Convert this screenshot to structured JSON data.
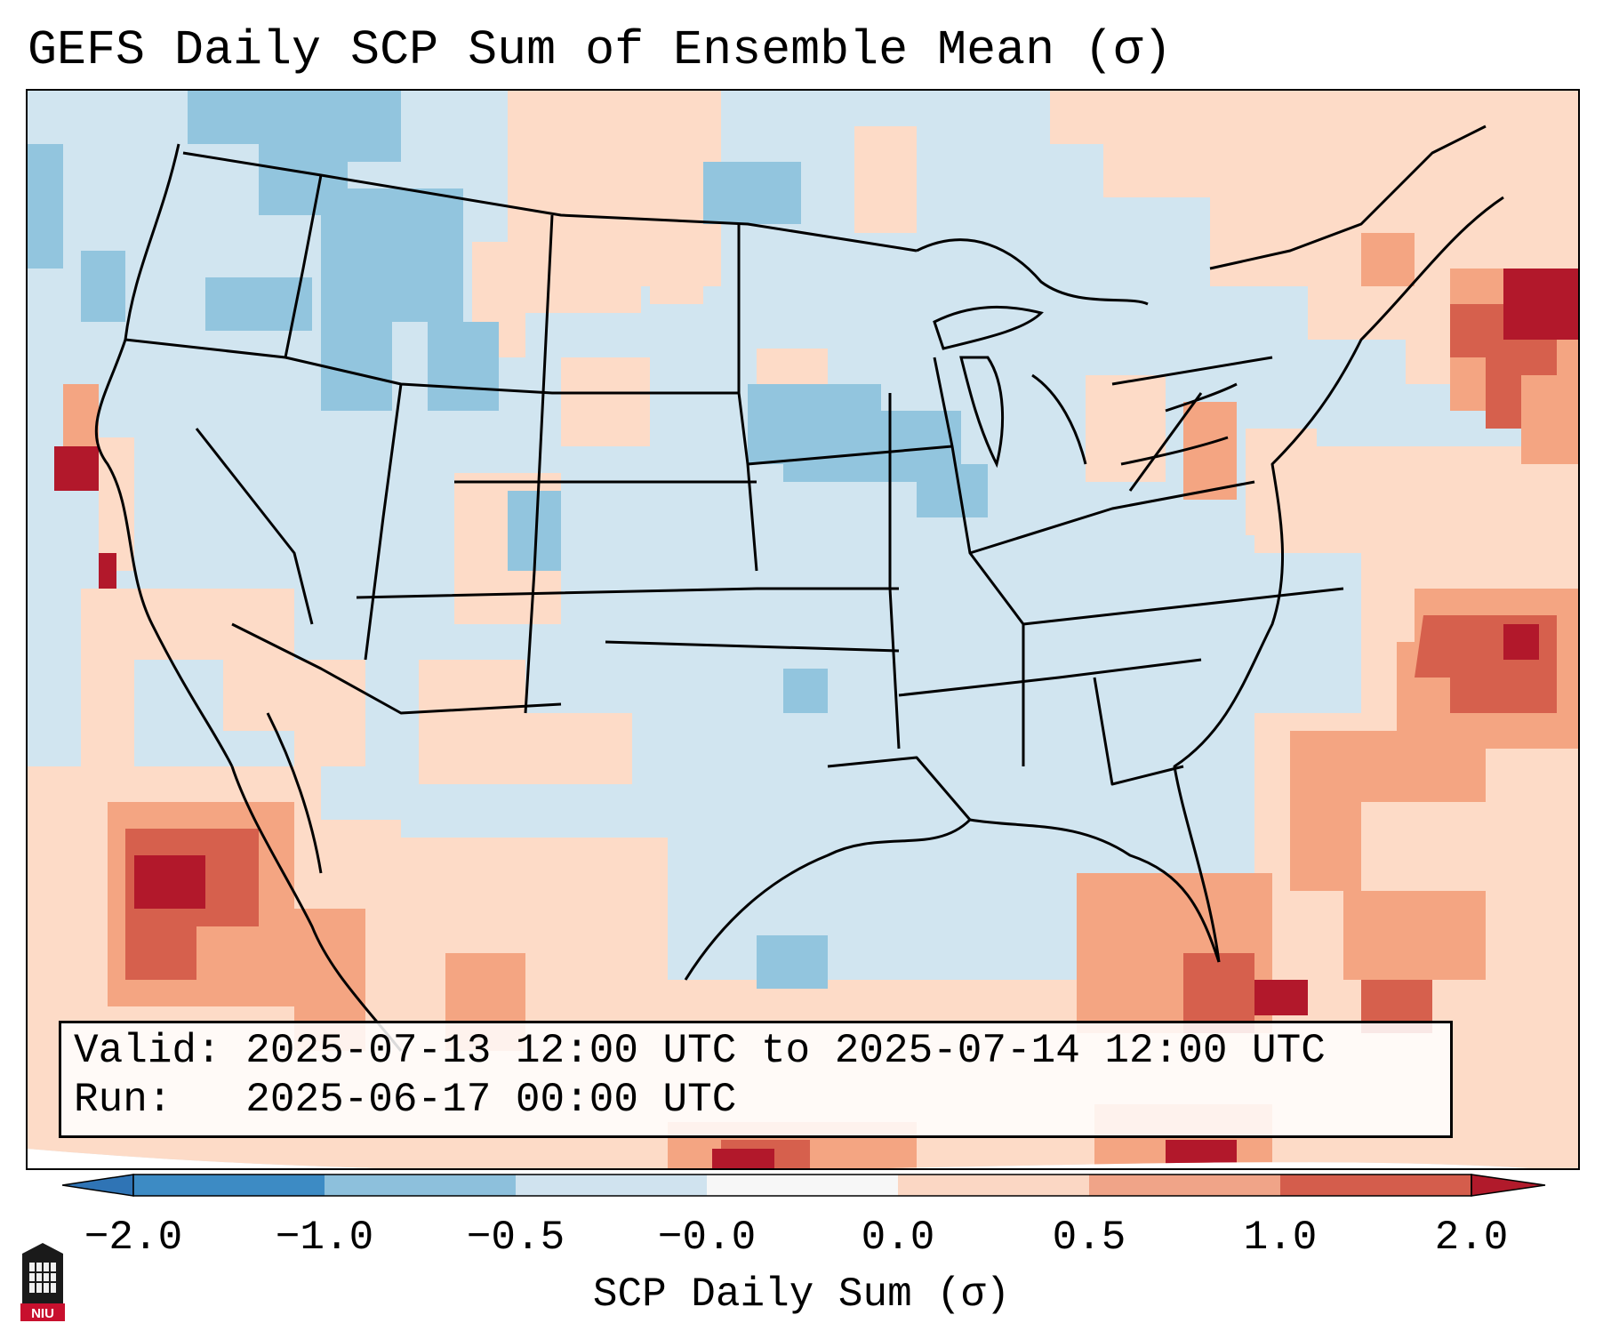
{
  "title": "GEFS Daily SCP Sum of Ensemble Mean (σ)",
  "info": {
    "valid_label": "Valid:",
    "valid_value": "2025-07-13 12:00 UTC to 2025-07-14 12:00 UTC",
    "run_label": "Run:",
    "run_value": "2025-06-17 00:00 UTC"
  },
  "colorbar": {
    "label": "SCP Daily Sum (σ)",
    "ticks": [
      "−2.0",
      "−1.0",
      "−0.5",
      "−0.0",
      "0.0",
      "0.5",
      "1.0",
      "2.0"
    ],
    "colors": [
      "#3d8bc4",
      "#8dc0dc",
      "#d0e3ef",
      "#f7f7f7",
      "#fbd7c4",
      "#f0a488",
      "#d45d4c"
    ],
    "under_color": "#2f74b5",
    "over_color": "#b11a2b"
  },
  "legend_colors": {
    "neutral": "#d1e5f0",
    "light_blue": "#92c5de",
    "mid_blue": "#6baed6",
    "light_red": "#fddbc7",
    "mid_red": "#f4a582",
    "strong_red": "#d6604d",
    "darkest_red": "#b2182b"
  },
  "logo": {
    "text": "NIU",
    "color": "#c8102e"
  }
}
